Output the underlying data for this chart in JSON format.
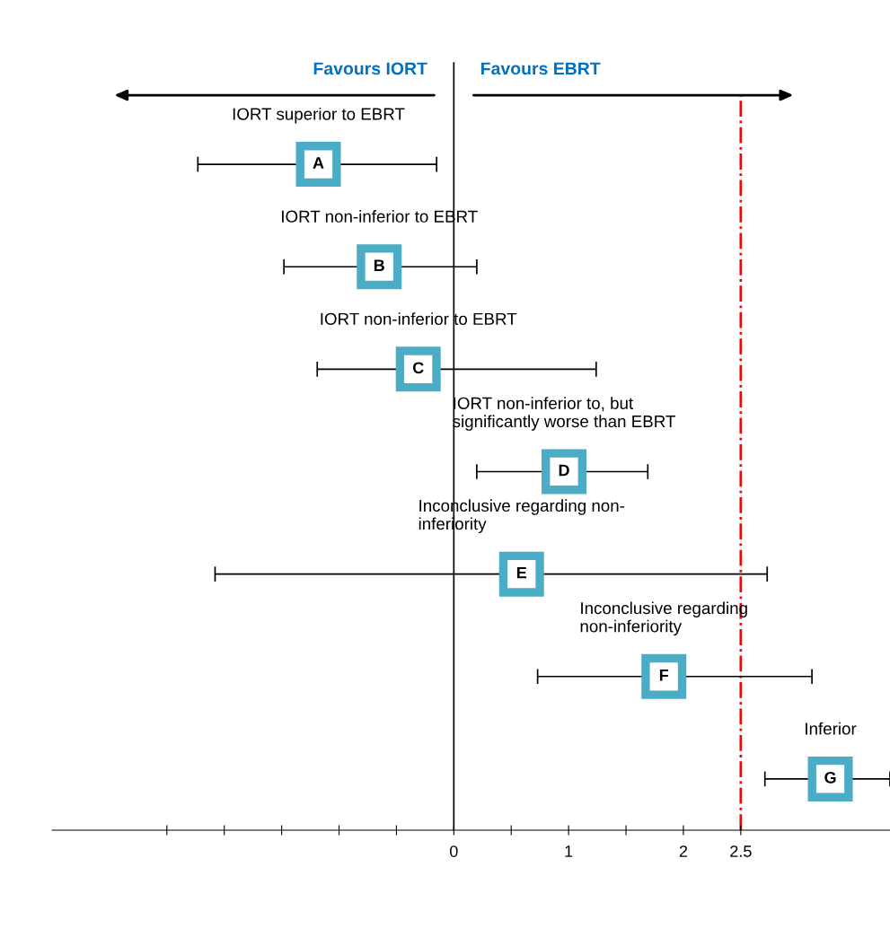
{
  "chart_data": {
    "type": "scatter",
    "orientation": "horizontal",
    "categories": [
      "A",
      "B",
      "C",
      "D",
      "E",
      "F",
      "G"
    ],
    "values": [
      -1.18,
      -0.65,
      -0.31,
      0.96,
      0.59,
      1.83,
      3.28
    ],
    "errors": [
      [
        -2.23,
        -0.15
      ],
      [
        -1.48,
        0.2
      ],
      [
        -1.19,
        1.24
      ],
      [
        0.2,
        1.69
      ],
      [
        -2.08,
        2.73
      ],
      [
        0.73,
        3.12
      ],
      [
        2.71,
        3.8
      ]
    ],
    "color": "#4bacc6",
    "marker": "square",
    "xlim": [
      -3.5,
      3.8
    ],
    "xticks": [
      {
        "value": -2.5,
        "label": null
      },
      {
        "value": -2,
        "label": null
      },
      {
        "value": -1.5,
        "label": null
      },
      {
        "value": -1,
        "label": null
      },
      {
        "value": -0.5,
        "label": null
      },
      0,
      {
        "value": 0.5,
        "label": null
      },
      1,
      {
        "value": 1.5,
        "label": null
      },
      2,
      2.5
    ],
    "tick_labels": "x",
    "grid": false,
    "ref_lines": [
      {
        "axis": "x",
        "value": 0,
        "color": "#000000",
        "line_style": "solid"
      },
      {
        "axis": "x",
        "value": 2.5,
        "color": "#ff0000",
        "line_style": "dashdot"
      }
    ],
    "annotations": [
      "Favours IORT",
      "Favours EBRT",
      "IORT superior to EBRT",
      "IORT non-inferior to EBRT",
      "IORT non-inferior to EBRT",
      "IORT non-inferior to, but\nsignificantly worse than EBRT",
      "Inconclusive regarding non-\ninferiority",
      "Inconclusive regarding\nnon-inferiority",
      "Inferior"
    ]
  }
}
